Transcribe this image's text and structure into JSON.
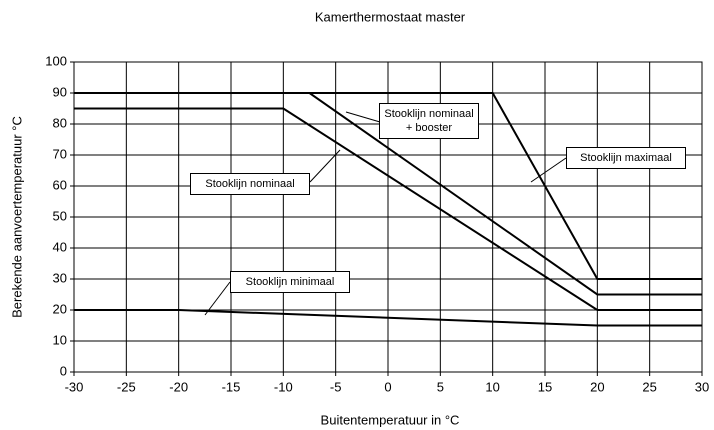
{
  "chart_data": {
    "type": "line",
    "title": "Kamerthermostaat master",
    "x_label": "Buitentemperatuur in °C",
    "y_label": "Berekende aanvoertemperatuur °C",
    "xlim": [
      -30,
      30
    ],
    "xticks": [
      -30,
      -25,
      -20,
      -15,
      -10,
      -5,
      0,
      5,
      10,
      15,
      20,
      25,
      30
    ],
    "ylim": [
      0,
      100
    ],
    "yticks": [
      0,
      10,
      20,
      30,
      40,
      50,
      60,
      70,
      80,
      90,
      100
    ],
    "grid": true,
    "series": [
      {
        "name": "Stooklijn maximaal",
        "color": "#000000",
        "x": [
          -30,
          10,
          20,
          30
        ],
        "values": [
          90,
          90,
          30,
          30
        ]
      },
      {
        "name": "Stooklijn nominaal + booster",
        "color": "#000000",
        "x": [
          -30,
          -7.5,
          20,
          30
        ],
        "values": [
          90,
          90,
          25,
          25
        ]
      },
      {
        "name": "Stooklijn nominaal",
        "color": "#000000",
        "x": [
          -30,
          -10,
          20,
          30
        ],
        "values": [
          85,
          85,
          20,
          20
        ]
      },
      {
        "name": "Stooklijn minimaal",
        "color": "#000000",
        "x": [
          -30,
          -20,
          20,
          30
        ],
        "values": [
          20,
          20,
          15,
          15
        ]
      }
    ]
  }
}
